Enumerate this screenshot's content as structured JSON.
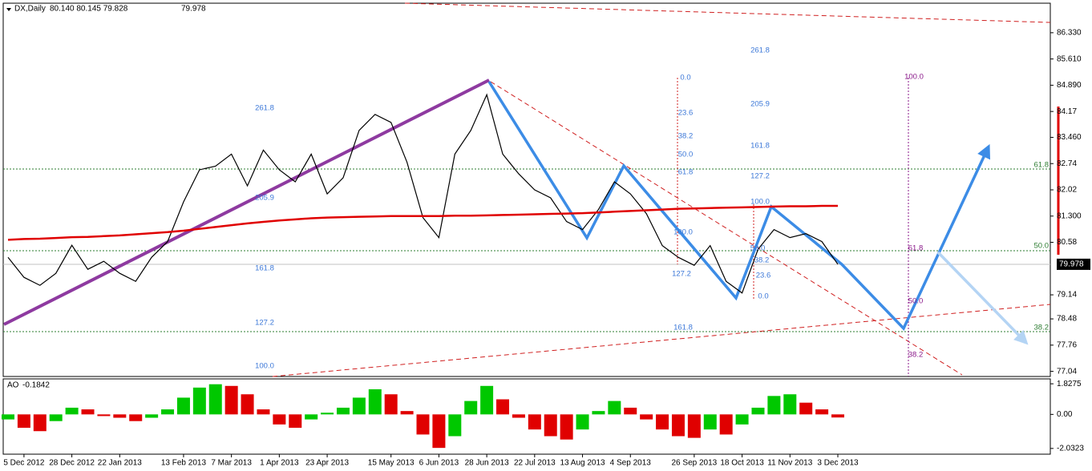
{
  "header": {
    "symbol": "DX,Daily",
    "prices": "80.140 80.145 79.828"
  },
  "chart_data": [
    {
      "type": "line",
      "title": "DX,Daily",
      "categories": [
        null,
        "5 Dec 2012",
        null,
        null,
        "28 Dec 2012",
        null,
        null,
        "22 Jan 2013",
        null,
        null,
        null,
        "13 Feb 2013",
        null,
        null,
        "7 Mar 2013",
        null,
        null,
        "1 Apr 2013",
        null,
        null,
        "23 Apr 2013",
        null,
        null,
        null,
        "15 May 2013",
        null,
        null,
        "6 Jun 2013",
        null,
        null,
        "28 Jun 2013",
        null,
        null,
        "22 Jul 2013",
        null,
        null,
        "13 Aug 2013",
        null,
        null,
        "4 Sep 2013",
        null,
        null,
        null,
        "26 Sep 2013",
        null,
        null,
        "18 Oct 2013",
        null,
        null,
        "11 Nov 2013",
        null,
        null,
        "3 Dec 2013"
      ],
      "series": [
        {
          "color": "#000000",
          "values": [
            80.17,
            79.62,
            79.4,
            79.73,
            80.5,
            79.84,
            80.06,
            79.73,
            79.51,
            80.17,
            80.6,
            81.69,
            82.57,
            82.67,
            83.0,
            82.13,
            83.11,
            82.57,
            82.24,
            83.0,
            81.91,
            82.35,
            83.65,
            84.09,
            83.87,
            82.78,
            81.26,
            80.71,
            83.0,
            83.65,
            84.63,
            83.0,
            82.46,
            82.02,
            81.8,
            81.15,
            80.93,
            81.48,
            82.24,
            81.91,
            81.37,
            80.49,
            80.17,
            79.95,
            80.49,
            79.51,
            79.19,
            80.39,
            80.93,
            80.71,
            80.82,
            80.6,
            79.978
          ]
        },
        {
          "color": "#e00000",
          "values": [
            80.65,
            80.67,
            80.68,
            80.7,
            80.72,
            80.73,
            80.75,
            80.77,
            80.8,
            80.83,
            80.86,
            80.9,
            80.95,
            81.0,
            81.05,
            81.1,
            81.14,
            81.18,
            81.21,
            81.24,
            81.26,
            81.27,
            81.28,
            81.29,
            81.3,
            81.3,
            81.3,
            81.3,
            81.31,
            81.31,
            81.32,
            81.33,
            81.34,
            81.35,
            81.36,
            81.37,
            81.38,
            81.4,
            81.42,
            81.44,
            81.46,
            81.48,
            81.5,
            81.51,
            81.52,
            81.53,
            81.54,
            81.55,
            81.56,
            81.57,
            81.57,
            81.58,
            81.58
          ]
        }
      ],
      "ylim": [
        76.9,
        87.14
      ],
      "yticks": [
        {
          "value": 86.33,
          "label": "86.330"
        },
        {
          "value": 85.61,
          "label": "85.610"
        },
        {
          "value": 84.89,
          "label": "84.890"
        },
        84.17,
        {
          "value": 83.46,
          "label": "83.460"
        },
        82.74,
        82.02,
        {
          "value": 81.3,
          "label": "81.300"
        },
        80.58,
        79.14,
        78.48,
        77.76,
        77.04
      ],
      "annotations": [
        {
          "color": "#3c78d8",
          "labels": [
            "261.8",
            "205.9",
            "161.8",
            "127.2",
            "100.0"
          ]
        },
        {
          "color": "#3c78d8",
          "labels": [
            "0.0",
            "23.6",
            "38.2",
            "50.0",
            "61.8",
            "100.0",
            "127.2",
            "161.8"
          ]
        },
        {
          "color": "#3c78d8",
          "labels": [
            "261.8",
            "205.9",
            "161.8",
            "127.2",
            "100.0",
            "50.0",
            "38.2",
            "23.6",
            "0.0"
          ]
        },
        {
          "color": "#8b1a8b",
          "labels": [
            "100.0",
            "61.8",
            "50.0",
            "38.2"
          ]
        },
        {
          "color": "#2e7d32",
          "labels": [
            "61.8",
            "50.0",
            "38.2"
          ]
        }
      ]
    },
    {
      "type": "bar",
      "title": "AO",
      "up_color": "#00c800",
      "down_color": "#e00000",
      "values": [
        -0.3,
        -0.8,
        -1.0,
        -0.4,
        0.4,
        0.3,
        -0.1,
        -0.2,
        -0.4,
        -0.2,
        0.3,
        1.0,
        1.6,
        1.8,
        1.7,
        1.2,
        0.3,
        -0.6,
        -0.8,
        -0.3,
        0.1,
        0.4,
        1.0,
        1.5,
        1.2,
        0.2,
        -1.2,
        -2.0,
        -1.3,
        0.8,
        1.7,
        0.9,
        -0.2,
        -0.9,
        -1.3,
        -1.5,
        -0.9,
        0.2,
        0.8,
        0.4,
        -0.3,
        -0.9,
        -1.3,
        -1.4,
        -0.9,
        -1.2,
        -0.6,
        0.4,
        1.1,
        1.2,
        0.7,
        0.3,
        -0.1842
      ],
      "ylim": [
        -2.375,
        2.12
      ],
      "yticks": [
        1.8275,
        {
          "value": 0,
          "label": "0.00"
        },
        -2.0323
      ]
    }
  ]
}
